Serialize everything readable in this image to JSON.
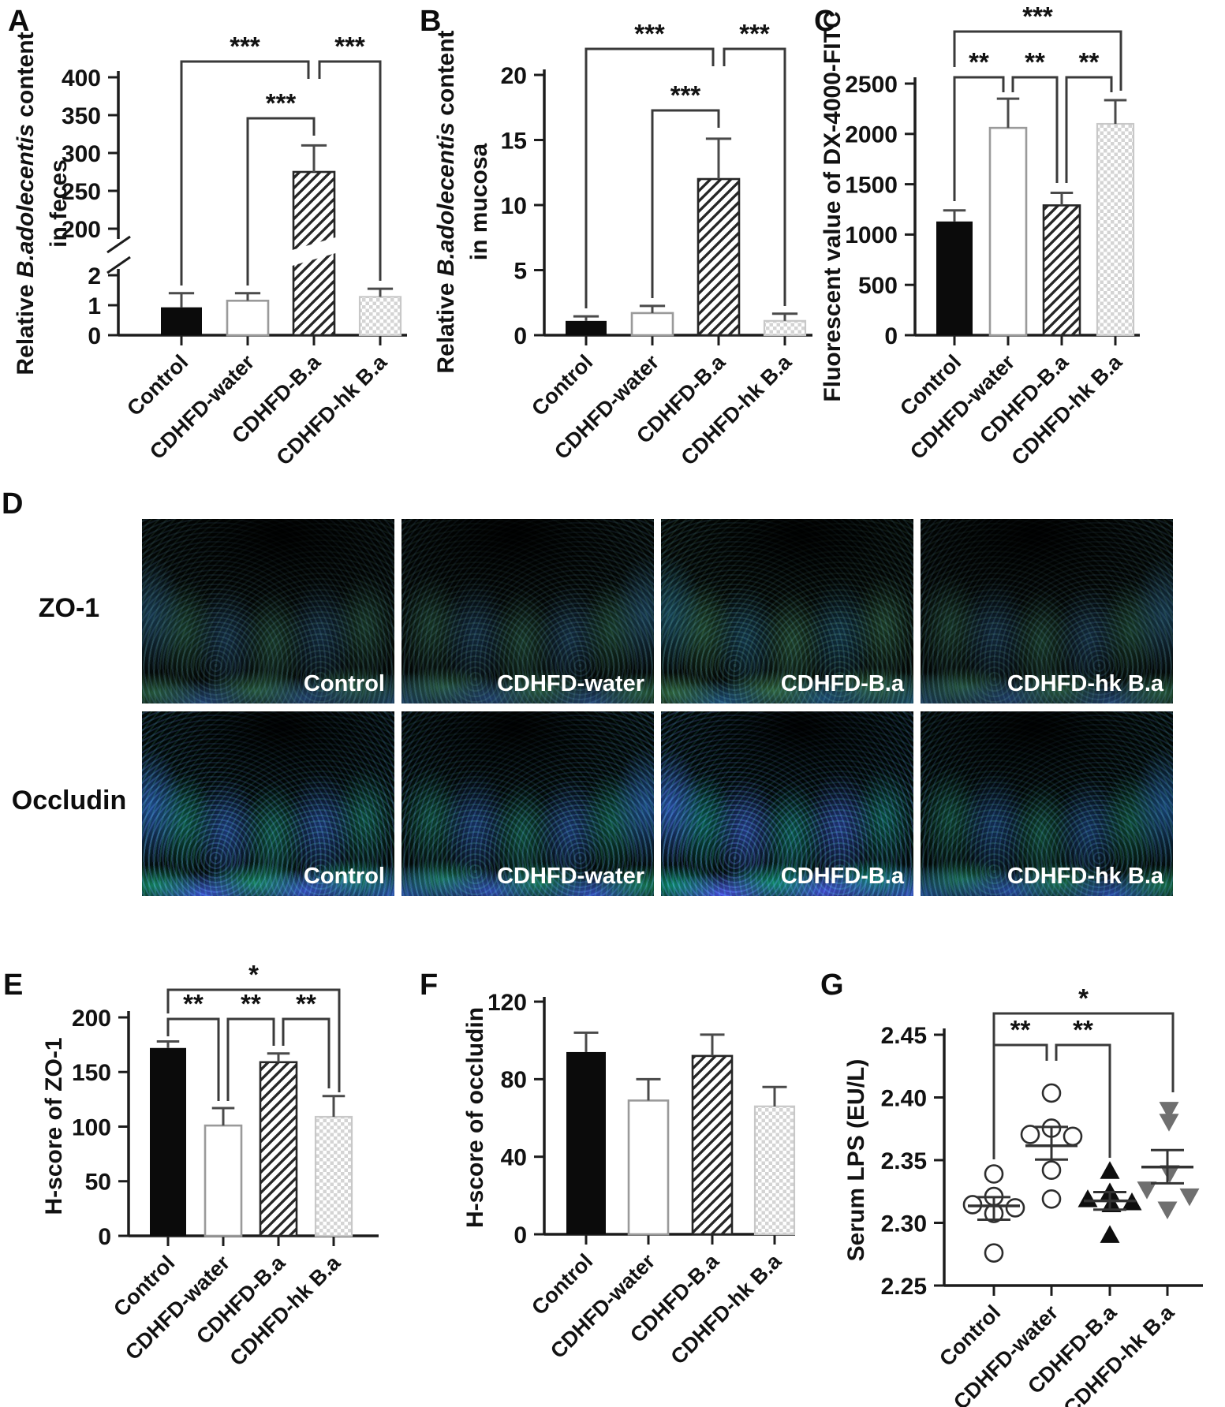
{
  "panels": {
    "A": "A",
    "B": "B",
    "C": "C",
    "D": "D",
    "E": "E",
    "F": "F",
    "G": "G"
  },
  "groups": [
    "Control",
    "CDHFD-water",
    "CDHFD-B.a",
    "CDHFD-hk B.a"
  ],
  "colors": {
    "bar_black": "#0b0b0b",
    "bar_open_stroke": "#9a9a9a",
    "hatch_stroke": "#262626",
    "checker_fill": "#d4d4d4",
    "checker_stroke": "#c8c8c8",
    "axis": "#1c1c1c",
    "error_bar": "#4a4a4a",
    "bracket": "#3a3a3a",
    "scatter_gray": "#6f6f6f",
    "micrograph_blue": "#3872c2",
    "micrograph_green": "#3c9a66",
    "tile_label": "#ffffff"
  },
  "chart_data": [
    {
      "panel": "A",
      "type": "bar",
      "ylabel": {
        "pre": "Relative ",
        "italic": "B.adolecentis",
        "post": " content",
        "line2": "in feces"
      },
      "categories": [
        "Control",
        "CDHFD-water",
        "CDHFD-B.a",
        "CDHFD-hk B.a"
      ],
      "bar_styles": [
        "solid",
        "open",
        "hatch",
        "checker"
      ],
      "values": [
        0.93,
        1.15,
        275,
        1.28
      ],
      "errors": [
        0.47,
        0.25,
        35,
        0.27
      ],
      "axis_break": true,
      "yticks_lower": [
        0,
        1,
        2
      ],
      "yticks_upper": [
        200,
        250,
        300,
        350,
        400
      ],
      "significance": [
        {
          "from": 0,
          "to": 2,
          "label": "***"
        },
        {
          "from": 1,
          "to": 2,
          "label": "***"
        },
        {
          "from": 2,
          "to": 3,
          "label": "***"
        }
      ]
    },
    {
      "panel": "B",
      "type": "bar",
      "ylabel": {
        "pre": "Relative ",
        "italic": "B.adolecentis",
        "post": " content",
        "line2": "in mucosa"
      },
      "categories": [
        "Control",
        "CDHFD-water",
        "CDHFD-B.a",
        "CDHFD-hk B.a"
      ],
      "bar_styles": [
        "solid",
        "open",
        "hatch",
        "checker"
      ],
      "values": [
        1.1,
        1.7,
        12,
        1.1
      ],
      "errors": [
        0.35,
        0.55,
        3.1,
        0.55
      ],
      "yticks": [
        0,
        5,
        10,
        15,
        20
      ],
      "significance": [
        {
          "from": 0,
          "to": 2,
          "label": "***"
        },
        {
          "from": 1,
          "to": 2,
          "label": "***"
        },
        {
          "from": 2,
          "to": 3,
          "label": "***"
        }
      ]
    },
    {
      "panel": "C",
      "type": "bar",
      "ylabel": "Fluorescent value of DX-4000-FITC",
      "categories": [
        "Control",
        "CDHFD-water",
        "CDHFD-B.a",
        "CDHFD-hk B.a"
      ],
      "bar_styles": [
        "solid",
        "open",
        "hatch",
        "checker"
      ],
      "values": [
        1130,
        2060,
        1290,
        2100
      ],
      "errors": [
        110,
        290,
        125,
        235
      ],
      "yticks": [
        0,
        500,
        1000,
        1500,
        2000,
        2500
      ],
      "significance": [
        {
          "from": 0,
          "to": 3,
          "label": "***"
        },
        {
          "from": 0,
          "to": 1,
          "label": "**"
        },
        {
          "from": 1,
          "to": 2,
          "label": "**"
        },
        {
          "from": 2,
          "to": 3,
          "label": "**"
        }
      ]
    },
    {
      "panel": "E",
      "type": "bar",
      "ylabel": "H-score of ZO-1",
      "categories": [
        "Control",
        "CDHFD-water",
        "CDHFD-B.a",
        "CDHFD-hk B.a"
      ],
      "bar_styles": [
        "solid",
        "open",
        "hatch",
        "checker"
      ],
      "values": [
        172,
        101,
        159,
        109
      ],
      "errors": [
        6,
        16,
        8,
        19
      ],
      "yticks": [
        0,
        50,
        100,
        150,
        200
      ],
      "significance": [
        {
          "from": 0,
          "to": 3,
          "label": "*"
        },
        {
          "from": 0,
          "to": 1,
          "label": "**"
        },
        {
          "from": 1,
          "to": 2,
          "label": "**"
        },
        {
          "from": 2,
          "to": 3,
          "label": "**"
        }
      ]
    },
    {
      "panel": "F",
      "type": "bar",
      "ylabel": "H-score of occludin",
      "categories": [
        "Control",
        "CDHFD-water",
        "CDHFD-B.a",
        "CDHFD-hk B.a"
      ],
      "bar_styles": [
        "solid",
        "open",
        "hatch",
        "checker"
      ],
      "values": [
        94,
        69,
        92,
        66
      ],
      "errors": [
        10,
        11,
        11,
        10
      ],
      "yticks": [
        0,
        40,
        80,
        120
      ],
      "significance": []
    },
    {
      "panel": "G",
      "type": "scatter",
      "ylabel": "Serum LPS (EU/L)",
      "categories": [
        "Control",
        "CDHFD-water",
        "CDHFD-B.a",
        "CDHFD-hk B.a"
      ],
      "ylim": [
        2.25,
        2.45
      ],
      "yticks": [
        2.25,
        2.3,
        2.35,
        2.4,
        2.45
      ],
      "groups": [
        {
          "name": "Control",
          "marker": "open-circle",
          "mean": 2.3135,
          "sem_hi": 2.3205,
          "sem_lo": 2.3025,
          "points": [
            {
              "dx": 0,
              "v": 2.339
            },
            {
              "dx": 0,
              "v": 2.321
            },
            {
              "dx": -27,
              "v": 2.3145
            },
            {
              "dx": 27,
              "v": 2.312
            },
            {
              "dx": 0,
              "v": 2.3075
            },
            {
              "dx": 0,
              "v": 2.276
            }
          ]
        },
        {
          "name": "CDHFD-water",
          "marker": "open-circle",
          "mean": 2.3615,
          "sem_hi": 2.3765,
          "sem_lo": 2.3505,
          "points": [
            {
              "dx": 0,
              "v": 2.4035
            },
            {
              "dx": -27,
              "v": 2.3705
            },
            {
              "dx": 0,
              "v": 2.3755
            },
            {
              "dx": 27,
              "v": 2.369
            },
            {
              "dx": 0,
              "v": 2.342
            },
            {
              "dx": 0,
              "v": 2.319
            }
          ]
        },
        {
          "name": "CDHFD-B.a",
          "marker": "triangle-up",
          "mean": 2.3175,
          "sem_hi": 2.3245,
          "sem_lo": 2.3105,
          "points": [
            {
              "dx": 0,
              "v": 2.341
            },
            {
              "dx": -28,
              "v": 2.3185
            },
            {
              "dx": 0,
              "v": 2.324
            },
            {
              "dx": 2,
              "v": 2.3145
            },
            {
              "dx": 28,
              "v": 2.316
            },
            {
              "dx": 0,
              "v": 2.29
            }
          ]
        },
        {
          "name": "CDHFD-hk B.a",
          "marker": "triangle-down-gray",
          "mean": 2.3445,
          "sem_hi": 2.358,
          "sem_lo": 2.3315,
          "points": [
            {
              "dx": 2,
              "v": 2.3905
            },
            {
              "dx": 2,
              "v": 2.381
            },
            {
              "dx": 3,
              "v": 2.34
            },
            {
              "dx": -26,
              "v": 2.327
            },
            {
              "dx": 28,
              "v": 2.3215
            },
            {
              "dx": 0,
              "v": 2.311
            }
          ]
        }
      ],
      "significance": [
        {
          "from": 0,
          "to": 3,
          "label": "*"
        },
        {
          "from": 0,
          "to": 1,
          "label": "**"
        },
        {
          "from": 1,
          "to": 2,
          "label": "**"
        }
      ]
    }
  ],
  "panel_d": {
    "rows": [
      {
        "label": "ZO-1",
        "tiles": [
          "Control",
          "CDHFD-water",
          "CDHFD-B.a",
          "CDHFD-hk B.a"
        ]
      },
      {
        "label": "Occludin",
        "tiles": [
          "Control",
          "CDHFD-water",
          "CDHFD-B.a",
          "CDHFD-hk B.a"
        ]
      }
    ]
  }
}
